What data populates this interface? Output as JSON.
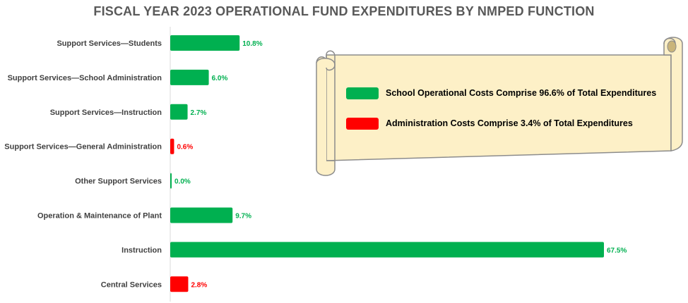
{
  "chart_data": {
    "type": "bar",
    "orientation": "horizontal",
    "title": "FISCAL YEAR 2023 OPERATIONAL FUND EXPENDITURES BY NMPED FUNCTION",
    "xlabel": "",
    "ylabel": "",
    "xlim": [
      0,
      67.5
    ],
    "grid": false,
    "legend_placement": "right (scroll-shaped box)",
    "categories": [
      "Support Services—Students",
      "Support Services—School Administration",
      "Support Services—Instruction",
      "Support Services—General Administration",
      "Other Support Services",
      "Operation & Maintenance of Plant",
      "Instruction",
      "Central Services"
    ],
    "values": [
      10.8,
      6.0,
      2.7,
      0.6,
      0.0,
      9.7,
      67.5,
      2.8
    ],
    "value_labels": [
      "10.8%",
      "6.0%",
      "2.7%",
      "0.6%",
      "0.0%",
      "9.7%",
      "67.5%",
      "2.8%"
    ],
    "bar_groups": [
      "school",
      "school",
      "school",
      "admin",
      "school",
      "school",
      "school",
      "admin"
    ],
    "colors": {
      "school": "#00b050",
      "admin": "#ff0000"
    },
    "legend": [
      {
        "group": "school",
        "text": "School Operational Costs Comprise 96.6% of Total Expenditures"
      },
      {
        "group": "admin",
        "text": "Administration Costs Comprise 3.4% of Total Expenditures"
      }
    ]
  },
  "styles": {
    "title_color": "#595959",
    "scroll_fill": "#fdf0c7",
    "scroll_stroke": "#8c8c8c",
    "axis_line": "#d9d9d9"
  }
}
